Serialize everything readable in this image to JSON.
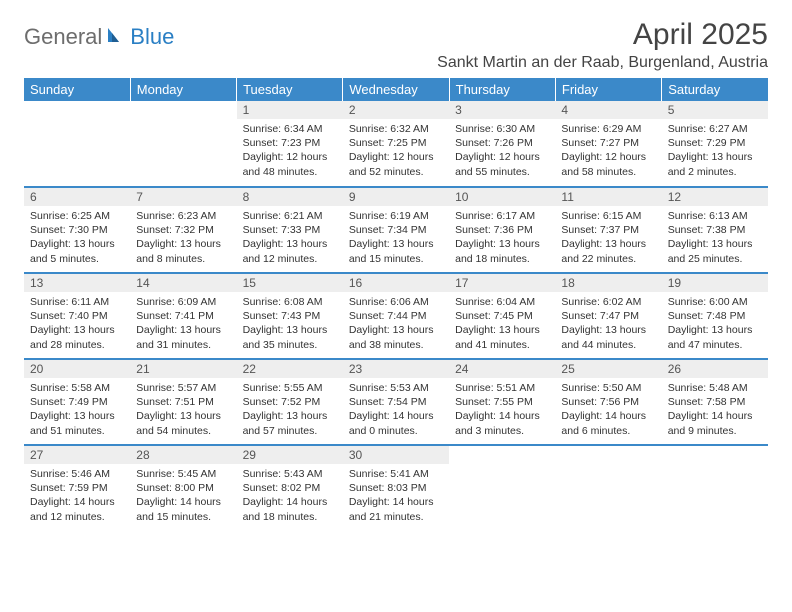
{
  "logo": {
    "word1": "General",
    "word2": "Blue"
  },
  "title": "April 2025",
  "location": "Sankt Martin an der Raab, Burgenland, Austria",
  "colors": {
    "header_bg": "#3b89c9",
    "header_text": "#ffffff",
    "daynum_bg": "#eeeeee",
    "row_border": "#3b89c9",
    "logo_gray": "#6d6d6d",
    "logo_blue": "#2a7fc4"
  },
  "weekdays": [
    "Sunday",
    "Monday",
    "Tuesday",
    "Wednesday",
    "Thursday",
    "Friday",
    "Saturday"
  ],
  "weeks": [
    [
      null,
      null,
      {
        "n": "1",
        "sr": "6:34 AM",
        "ss": "7:23 PM",
        "dl": "12 hours and 48 minutes."
      },
      {
        "n": "2",
        "sr": "6:32 AM",
        "ss": "7:25 PM",
        "dl": "12 hours and 52 minutes."
      },
      {
        "n": "3",
        "sr": "6:30 AM",
        "ss": "7:26 PM",
        "dl": "12 hours and 55 minutes."
      },
      {
        "n": "4",
        "sr": "6:29 AM",
        "ss": "7:27 PM",
        "dl": "12 hours and 58 minutes."
      },
      {
        "n": "5",
        "sr": "6:27 AM",
        "ss": "7:29 PM",
        "dl": "13 hours and 2 minutes."
      }
    ],
    [
      {
        "n": "6",
        "sr": "6:25 AM",
        "ss": "7:30 PM",
        "dl": "13 hours and 5 minutes."
      },
      {
        "n": "7",
        "sr": "6:23 AM",
        "ss": "7:32 PM",
        "dl": "13 hours and 8 minutes."
      },
      {
        "n": "8",
        "sr": "6:21 AM",
        "ss": "7:33 PM",
        "dl": "13 hours and 12 minutes."
      },
      {
        "n": "9",
        "sr": "6:19 AM",
        "ss": "7:34 PM",
        "dl": "13 hours and 15 minutes."
      },
      {
        "n": "10",
        "sr": "6:17 AM",
        "ss": "7:36 PM",
        "dl": "13 hours and 18 minutes."
      },
      {
        "n": "11",
        "sr": "6:15 AM",
        "ss": "7:37 PM",
        "dl": "13 hours and 22 minutes."
      },
      {
        "n": "12",
        "sr": "6:13 AM",
        "ss": "7:38 PM",
        "dl": "13 hours and 25 minutes."
      }
    ],
    [
      {
        "n": "13",
        "sr": "6:11 AM",
        "ss": "7:40 PM",
        "dl": "13 hours and 28 minutes."
      },
      {
        "n": "14",
        "sr": "6:09 AM",
        "ss": "7:41 PM",
        "dl": "13 hours and 31 minutes."
      },
      {
        "n": "15",
        "sr": "6:08 AM",
        "ss": "7:43 PM",
        "dl": "13 hours and 35 minutes."
      },
      {
        "n": "16",
        "sr": "6:06 AM",
        "ss": "7:44 PM",
        "dl": "13 hours and 38 minutes."
      },
      {
        "n": "17",
        "sr": "6:04 AM",
        "ss": "7:45 PM",
        "dl": "13 hours and 41 minutes."
      },
      {
        "n": "18",
        "sr": "6:02 AM",
        "ss": "7:47 PM",
        "dl": "13 hours and 44 minutes."
      },
      {
        "n": "19",
        "sr": "6:00 AM",
        "ss": "7:48 PM",
        "dl": "13 hours and 47 minutes."
      }
    ],
    [
      {
        "n": "20",
        "sr": "5:58 AM",
        "ss": "7:49 PM",
        "dl": "13 hours and 51 minutes."
      },
      {
        "n": "21",
        "sr": "5:57 AM",
        "ss": "7:51 PM",
        "dl": "13 hours and 54 minutes."
      },
      {
        "n": "22",
        "sr": "5:55 AM",
        "ss": "7:52 PM",
        "dl": "13 hours and 57 minutes."
      },
      {
        "n": "23",
        "sr": "5:53 AM",
        "ss": "7:54 PM",
        "dl": "14 hours and 0 minutes."
      },
      {
        "n": "24",
        "sr": "5:51 AM",
        "ss": "7:55 PM",
        "dl": "14 hours and 3 minutes."
      },
      {
        "n": "25",
        "sr": "5:50 AM",
        "ss": "7:56 PM",
        "dl": "14 hours and 6 minutes."
      },
      {
        "n": "26",
        "sr": "5:48 AM",
        "ss": "7:58 PM",
        "dl": "14 hours and 9 minutes."
      }
    ],
    [
      {
        "n": "27",
        "sr": "5:46 AM",
        "ss": "7:59 PM",
        "dl": "14 hours and 12 minutes."
      },
      {
        "n": "28",
        "sr": "5:45 AM",
        "ss": "8:00 PM",
        "dl": "14 hours and 15 minutes."
      },
      {
        "n": "29",
        "sr": "5:43 AM",
        "ss": "8:02 PM",
        "dl": "14 hours and 18 minutes."
      },
      {
        "n": "30",
        "sr": "5:41 AM",
        "ss": "8:03 PM",
        "dl": "14 hours and 21 minutes."
      },
      null,
      null,
      null
    ]
  ],
  "labels": {
    "sunrise": "Sunrise:",
    "sunset": "Sunset:",
    "daylight": "Daylight:"
  }
}
